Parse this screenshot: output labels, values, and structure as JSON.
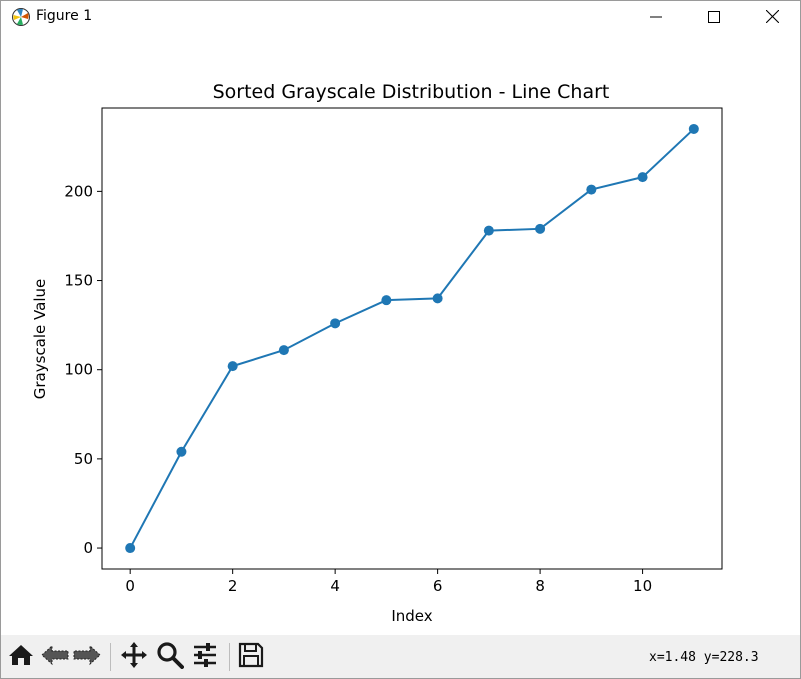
{
  "window": {
    "title": "Figure 1",
    "icons": [
      "matplotlib-logo-icon",
      "minimize-icon",
      "maximize-icon",
      "close-icon"
    ]
  },
  "chart_data": {
    "type": "line",
    "title": "Sorted Grayscale Distribution - Line Chart",
    "xlabel": "Index",
    "ylabel": "Grayscale Value",
    "x": [
      0,
      1,
      2,
      3,
      4,
      5,
      6,
      7,
      8,
      9,
      10,
      11
    ],
    "values": [
      0,
      54,
      102,
      111,
      126,
      139,
      140,
      178,
      179,
      201,
      208,
      235
    ],
    "xlim": [
      -0.55,
      11.55
    ],
    "ylim": [
      -11.75,
      246.75
    ],
    "xticks": [
      0,
      2,
      4,
      6,
      8,
      10
    ],
    "yticks": [
      0,
      50,
      100,
      150,
      200
    ],
    "marker": "circle",
    "color": "#1f77b4",
    "grid": false,
    "legend": "none"
  },
  "toolbar": {
    "icons": [
      "home-icon",
      "back-icon",
      "forward-icon",
      "pan-icon",
      "zoom-icon",
      "configure-subplots-icon",
      "save-icon"
    ],
    "coords_text": "x=1.48 y=228.3"
  }
}
